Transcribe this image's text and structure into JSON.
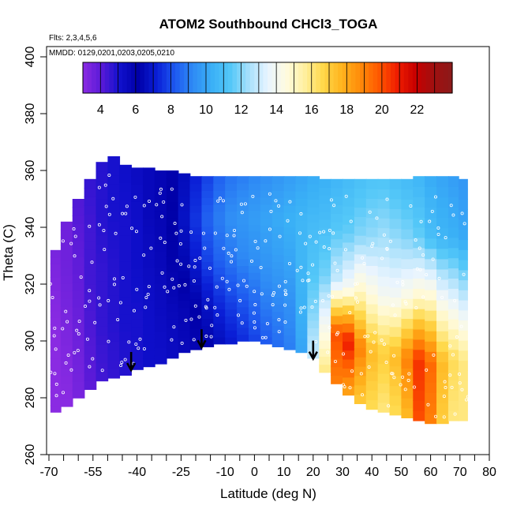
{
  "chart_data": {
    "type": "heatmap",
    "title": "ATOM2 Southbound CHCl3_TOGA",
    "flights_label": "Flts: 2,3,4,5,6",
    "dates_label": "MMDD: 0129,0201,0203,0205,0210",
    "xlabel": "Latitude (deg N)",
    "ylabel": "Theta (C)",
    "xlim": [
      -70,
      80
    ],
    "ylim": [
      260,
      400
    ],
    "x_tick_labels": [
      "-70",
      "-55",
      "-40",
      "-25",
      "-10",
      "0",
      "10",
      "20",
      "30",
      "40",
      "50",
      "60",
      "70",
      "80"
    ],
    "x_tick_values": [
      -70,
      -55,
      -40,
      -25,
      -10,
      0,
      10,
      20,
      30,
      40,
      50,
      60,
      70,
      80
    ],
    "x_minor_ticks": [
      -65,
      -60,
      -50,
      -45,
      -35,
      -30,
      -20,
      -15,
      -5,
      5,
      15,
      25,
      35,
      45,
      55,
      65,
      75
    ],
    "y_tick_values": [
      260,
      280,
      300,
      320,
      340,
      360,
      380,
      400
    ],
    "y_tick_labels": [
      "260",
      "280",
      "300",
      "320",
      "340",
      "360",
      "380",
      "400"
    ],
    "colorbar": {
      "min": 3,
      "max": 24,
      "tick_values": [
        4,
        6,
        8,
        10,
        12,
        14,
        16,
        18,
        20,
        22
      ],
      "tick_labels": [
        "4",
        "6",
        "8",
        "10",
        "12",
        "14",
        "16",
        "18",
        "20",
        "22"
      ],
      "colors": [
        "#8a2be2",
        "#5a1ad8",
        "#1010cc",
        "#0000a8",
        "#0a1ed6",
        "#1e5af0",
        "#2f8cf5",
        "#3ab0f6",
        "#54c8f8",
        "#a8e0fb",
        "#e8f4ff",
        "#fffbe0",
        "#fff0a0",
        "#ffd84a",
        "#ffb41e",
        "#ff8c0a",
        "#ff5a00",
        "#f01e00",
        "#c80000",
        "#a01010",
        "#8b1a1a"
      ]
    },
    "field": {
      "columns": [
        -68,
        -64,
        -60,
        -56,
        -52,
        -48,
        -44,
        -40,
        -36,
        -32,
        -28,
        -24,
        -20,
        -16,
        -12,
        -8,
        -4,
        0,
        4,
        8,
        12,
        16,
        20,
        24,
        28,
        32,
        36,
        40,
        44,
        48,
        52,
        56,
        60,
        64,
        68,
        71
      ],
      "theta_bottom": [
        275,
        277,
        280,
        283,
        286,
        287,
        288,
        290,
        291,
        292,
        294,
        296,
        297,
        298,
        299,
        299,
        300,
        300,
        299,
        298,
        297,
        296,
        294,
        289,
        285,
        281,
        278,
        276,
        275,
        274,
        273,
        272,
        271,
        271,
        272,
        272
      ],
      "theta_top": [
        332,
        342,
        350,
        357,
        363,
        365,
        362,
        361,
        361,
        360,
        360,
        359,
        358,
        358,
        358,
        358,
        358,
        358,
        358,
        358,
        358,
        358,
        358,
        357,
        357,
        357,
        357,
        357,
        357,
        357,
        357,
        358,
        358,
        358,
        358,
        357
      ],
      "value_columns": [
        [
          2.8,
          2.8,
          3.0,
          3.2,
          3.4
        ],
        [
          3.0,
          3.2,
          3.4,
          3.6,
          3.6
        ],
        [
          3.4,
          3.6,
          3.8,
          4.0,
          4.2
        ],
        [
          4.0,
          4.2,
          4.4,
          4.4,
          4.6
        ],
        [
          4.4,
          4.6,
          4.6,
          4.8,
          4.8
        ],
        [
          4.6,
          4.8,
          4.8,
          5.0,
          5.0
        ],
        [
          4.8,
          5.0,
          5.0,
          5.0,
          5.2
        ],
        [
          5.0,
          5.0,
          5.2,
          5.2,
          5.4
        ],
        [
          5.2,
          5.2,
          5.4,
          5.6,
          5.6
        ],
        [
          5.2,
          5.4,
          5.6,
          5.8,
          5.8
        ],
        [
          5.4,
          5.6,
          6.0,
          6.2,
          6.0
        ],
        [
          5.6,
          5.8,
          6.4,
          6.8,
          6.6
        ],
        [
          5.8,
          6.2,
          7.0,
          7.6,
          7.2
        ],
        [
          6.2,
          6.8,
          7.8,
          8.4,
          7.8
        ],
        [
          6.6,
          7.4,
          8.4,
          9.0,
          8.4
        ],
        [
          7.0,
          7.8,
          8.8,
          9.4,
          8.8
        ],
        [
          7.4,
          8.2,
          9.2,
          9.6,
          9.0
        ],
        [
          7.8,
          8.6,
          9.4,
          9.8,
          9.2
        ],
        [
          8.2,
          9.0,
          9.6,
          10.0,
          9.4
        ],
        [
          8.6,
          9.2,
          9.8,
          10.2,
          9.6
        ],
        [
          9.0,
          9.4,
          10.0,
          10.4,
          9.8
        ],
        [
          10.0,
          10.4,
          10.6,
          10.6,
          10.0
        ],
        [
          13.0,
          12.0,
          11.2,
          10.8,
          10.2
        ],
        [
          16.0,
          14.0,
          11.8,
          11.0,
          10.4
        ],
        [
          19.0,
          20.0,
          13.0,
          11.4,
          10.6
        ],
        [
          18.0,
          21.0,
          14.0,
          11.6,
          10.8
        ],
        [
          17.0,
          19.0,
          15.0,
          12.0,
          11.0
        ],
        [
          16.5,
          17.5,
          14.5,
          12.2,
          11.2
        ],
        [
          16.0,
          17.0,
          14.0,
          12.4,
          11.2
        ],
        [
          16.5,
          17.5,
          14.0,
          12.2,
          11.0
        ],
        [
          17.5,
          19.0,
          14.5,
          12.0,
          10.8
        ],
        [
          20.0,
          20.5,
          15.0,
          11.6,
          10.6
        ],
        [
          19.0,
          19.5,
          15.0,
          11.0,
          10.2
        ],
        [
          17.0,
          17.5,
          14.0,
          10.6,
          10.0
        ],
        [
          16.0,
          16.5,
          13.5,
          10.4,
          9.8
        ],
        [
          16.0,
          16.0,
          13.0,
          10.2,
          9.6
        ]
      ]
    },
    "annotations": {
      "arrows": [
        {
          "x": -42,
          "theta": 290
        },
        {
          "x": -18,
          "theta": 298
        },
        {
          "x": 20,
          "theta": 294
        }
      ]
    },
    "grid": false,
    "legend_placement": "top"
  }
}
